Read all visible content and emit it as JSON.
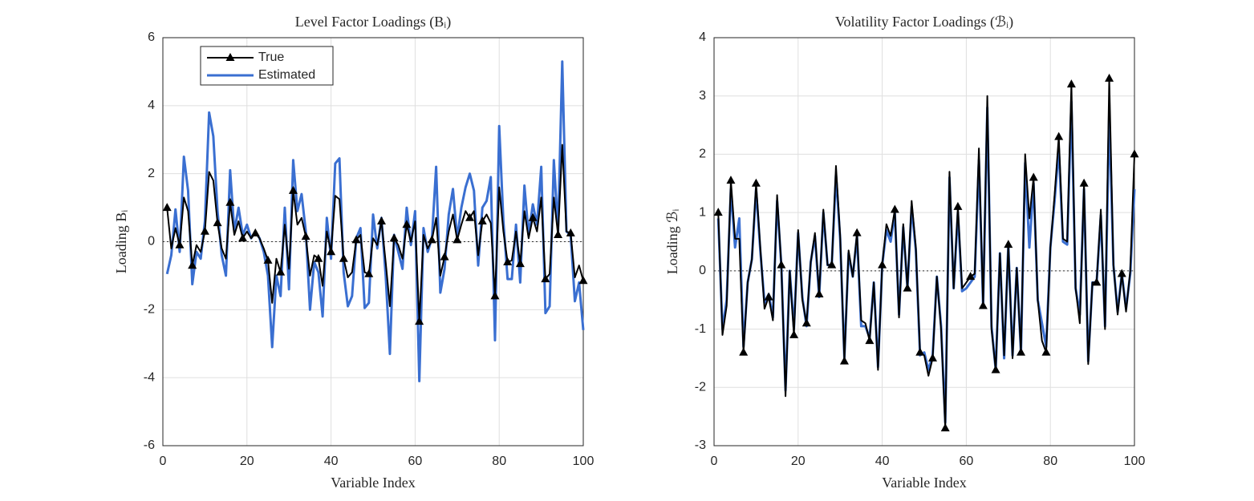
{
  "chart_data": [
    {
      "type": "line",
      "title": "Level Factor Loadings (Bᵢ)",
      "xlabel": "Variable Index",
      "ylabel": "Loading Bᵢ",
      "x": [
        1,
        2,
        3,
        4,
        5,
        6,
        7,
        8,
        9,
        10,
        11,
        12,
        13,
        14,
        15,
        16,
        17,
        18,
        19,
        20,
        21,
        22,
        23,
        24,
        25,
        26,
        27,
        28,
        29,
        30,
        31,
        32,
        33,
        34,
        35,
        36,
        37,
        38,
        39,
        40,
        41,
        42,
        43,
        44,
        45,
        46,
        47,
        48,
        49,
        50,
        51,
        52,
        53,
        54,
        55,
        56,
        57,
        58,
        59,
        60,
        61,
        62,
        63,
        64,
        65,
        66,
        67,
        68,
        69,
        70,
        71,
        72,
        73,
        74,
        75,
        76,
        77,
        78,
        79,
        80,
        81,
        82,
        83,
        84,
        85,
        86,
        87,
        88,
        89,
        90,
        91,
        92,
        93,
        94,
        95,
        96,
        97,
        98,
        99,
        100
      ],
      "xlim": [
        0,
        100
      ],
      "xticks": [
        0,
        20,
        40,
        60,
        80,
        100
      ],
      "ylim": [
        -6,
        6
      ],
      "yticks": [
        -6,
        -4,
        -2,
        0,
        2,
        4,
        6
      ],
      "grid": true,
      "reference_line": 0,
      "legend": "upper left",
      "series": [
        {
          "name": "True",
          "color": "#000000",
          "marker": "triangle",
          "marker_every": 3,
          "values": [
            1.0,
            -0.2,
            0.4,
            -0.1,
            1.3,
            0.9,
            -0.7,
            -0.1,
            -0.3,
            0.3,
            2.05,
            1.8,
            0.55,
            -0.2,
            -0.5,
            1.15,
            0.2,
            0.6,
            0.1,
            0.3,
            0.1,
            0.25,
            0.1,
            -0.2,
            -0.55,
            -1.8,
            -0.5,
            -0.9,
            0.5,
            -0.8,
            1.5,
            0.5,
            0.7,
            0.15,
            -1.0,
            -0.4,
            -0.5,
            -1.3,
            0.3,
            -0.3,
            1.35,
            1.25,
            -0.5,
            -1.05,
            -0.9,
            0.05,
            0.2,
            -0.9,
            -0.95,
            0.1,
            -0.1,
            0.6,
            -0.6,
            -1.9,
            0.1,
            -0.1,
            -0.5,
            0.5,
            0.0,
            0.6,
            -2.35,
            0.2,
            -0.2,
            0.05,
            0.7,
            -1.0,
            -0.45,
            0.3,
            0.8,
            0.05,
            0.5,
            0.9,
            0.7,
            0.9,
            -0.4,
            0.6,
            0.8,
            0.55,
            -1.6,
            1.6,
            0.3,
            -0.6,
            -0.55,
            0.3,
            -0.65,
            0.9,
            0.1,
            0.7,
            0.3,
            1.3,
            -1.1,
            -0.95,
            1.3,
            0.2,
            2.85,
            0.3,
            0.25,
            -1.05,
            -0.7,
            -1.15
          ]
        },
        {
          "name": "Estimated",
          "color": "#3a6fd1",
          "values": [
            -0.95,
            -0.4,
            0.95,
            -0.3,
            2.5,
            1.5,
            -1.25,
            -0.3,
            -0.5,
            0.6,
            3.8,
            3.1,
            0.9,
            -0.4,
            -1.0,
            2.1,
            0.3,
            1.0,
            0.2,
            0.5,
            0.1,
            0.3,
            0.1,
            -0.3,
            -1.0,
            -3.1,
            -1.0,
            -1.6,
            1.0,
            -1.4,
            2.4,
            0.9,
            1.4,
            0.3,
            -2.0,
            -0.6,
            -0.9,
            -2.2,
            0.7,
            -0.5,
            2.3,
            2.45,
            -0.9,
            -1.9,
            -1.6,
            0.1,
            0.4,
            -1.95,
            -1.8,
            0.8,
            -0.2,
            0.7,
            -1.0,
            -3.3,
            0.2,
            -0.3,
            -0.8,
            1.0,
            -0.1,
            0.9,
            -4.1,
            0.4,
            -0.3,
            0.1,
            2.2,
            -1.5,
            -0.8,
            0.8,
            1.55,
            0.1,
            1.0,
            1.6,
            2.0,
            1.5,
            -0.7,
            1.0,
            1.2,
            1.9,
            -2.9,
            3.4,
            0.6,
            -1.1,
            -1.1,
            0.5,
            -1.2,
            1.65,
            0.2,
            1.1,
            0.5,
            2.2,
            -2.1,
            -1.9,
            2.4,
            0.3,
            5.3,
            0.3,
            0.2,
            -1.75,
            -1.2,
            -2.6
          ]
        }
      ]
    },
    {
      "type": "line",
      "title": "Volatility Factor Loadings (ℬᵢ)",
      "xlabel": "Variable Index",
      "ylabel": "Loading ℬᵢ",
      "x": [
        1,
        2,
        3,
        4,
        5,
        6,
        7,
        8,
        9,
        10,
        11,
        12,
        13,
        14,
        15,
        16,
        17,
        18,
        19,
        20,
        21,
        22,
        23,
        24,
        25,
        26,
        27,
        28,
        29,
        30,
        31,
        32,
        33,
        34,
        35,
        36,
        37,
        38,
        39,
        40,
        41,
        42,
        43,
        44,
        45,
        46,
        47,
        48,
        49,
        50,
        51,
        52,
        53,
        54,
        55,
        56,
        57,
        58,
        59,
        60,
        61,
        62,
        63,
        64,
        65,
        66,
        67,
        68,
        69,
        70,
        71,
        72,
        73,
        74,
        75,
        76,
        77,
        78,
        79,
        80,
        81,
        82,
        83,
        84,
        85,
        86,
        87,
        88,
        89,
        90,
        91,
        92,
        93,
        94,
        95,
        96,
        97,
        98,
        99,
        100
      ],
      "xlim": [
        0,
        100
      ],
      "xticks": [
        0,
        20,
        40,
        60,
        80,
        100
      ],
      "ylim": [
        -3,
        4
      ],
      "yticks": [
        -3,
        -2,
        -1,
        0,
        1,
        2,
        3,
        4
      ],
      "grid": true,
      "reference_line": 0,
      "series": [
        {
          "name": "True",
          "color": "#000000",
          "marker": "triangle",
          "marker_every": 3,
          "values": [
            1.0,
            -1.1,
            -0.6,
            1.55,
            0.55,
            0.55,
            -1.4,
            -0.2,
            0.2,
            1.5,
            0.4,
            -0.65,
            -0.45,
            -0.85,
            1.3,
            0.1,
            -2.15,
            0.0,
            -1.1,
            0.7,
            -0.5,
            -0.9,
            0.15,
            0.65,
            -0.4,
            1.05,
            0.1,
            0.1,
            1.8,
            0.6,
            -1.55,
            0.35,
            -0.1,
            0.65,
            -0.85,
            -0.9,
            -1.2,
            -0.2,
            -1.7,
            0.1,
            0.8,
            0.6,
            1.05,
            -0.8,
            0.8,
            -0.3,
            1.2,
            0.4,
            -1.4,
            -1.45,
            -1.8,
            -1.5,
            -0.1,
            -1.0,
            -2.7,
            1.7,
            -0.3,
            1.1,
            -0.3,
            -0.2,
            -0.1,
            -0.05,
            2.1,
            -0.6,
            3.0,
            -1.0,
            -1.7,
            0.3,
            -1.45,
            0.45,
            -1.5,
            0.05,
            -1.4,
            2.0,
            0.9,
            1.6,
            -0.5,
            -1.2,
            -1.4,
            0.4,
            1.3,
            2.3,
            0.55,
            0.5,
            3.2,
            -0.3,
            -0.9,
            1.5,
            -1.6,
            -0.2,
            -0.2,
            1.05,
            -1.0,
            3.3,
            0.1,
            -0.75,
            -0.05,
            -0.7,
            0.0,
            2.0
          ]
        },
        {
          "name": "Estimated",
          "color": "#3a6fd1",
          "values": [
            0.9,
            -1.0,
            -0.5,
            1.4,
            0.4,
            0.9,
            -1.3,
            -0.2,
            0.2,
            1.4,
            0.35,
            -0.55,
            -0.4,
            -0.8,
            1.2,
            0.1,
            -2.05,
            0.0,
            -1.0,
            0.65,
            -0.45,
            -0.95,
            0.15,
            0.6,
            -0.45,
            1.0,
            0.1,
            0.1,
            1.65,
            0.55,
            -1.5,
            0.3,
            -0.1,
            0.6,
            -0.95,
            -0.95,
            -1.15,
            -0.2,
            -1.65,
            0.1,
            0.7,
            0.5,
            1.0,
            -0.75,
            0.75,
            -0.3,
            1.1,
            0.35,
            -1.45,
            -1.4,
            -1.7,
            -1.45,
            -0.1,
            -0.95,
            -2.6,
            1.6,
            -0.3,
            1.0,
            -0.35,
            -0.3,
            -0.2,
            -0.1,
            1.9,
            -0.6,
            2.8,
            -0.95,
            -1.7,
            0.3,
            -1.5,
            0.45,
            -1.45,
            0.05,
            -1.4,
            1.85,
            0.4,
            1.5,
            -0.5,
            -0.9,
            -1.3,
            0.4,
            1.2,
            2.1,
            0.5,
            0.45,
            2.9,
            -0.3,
            -0.75,
            1.4,
            -1.55,
            -0.2,
            -0.2,
            0.95,
            -0.95,
            2.7,
            0.1,
            -0.7,
            -0.05,
            -0.65,
            -0.05,
            1.4
          ]
        }
      ]
    }
  ]
}
